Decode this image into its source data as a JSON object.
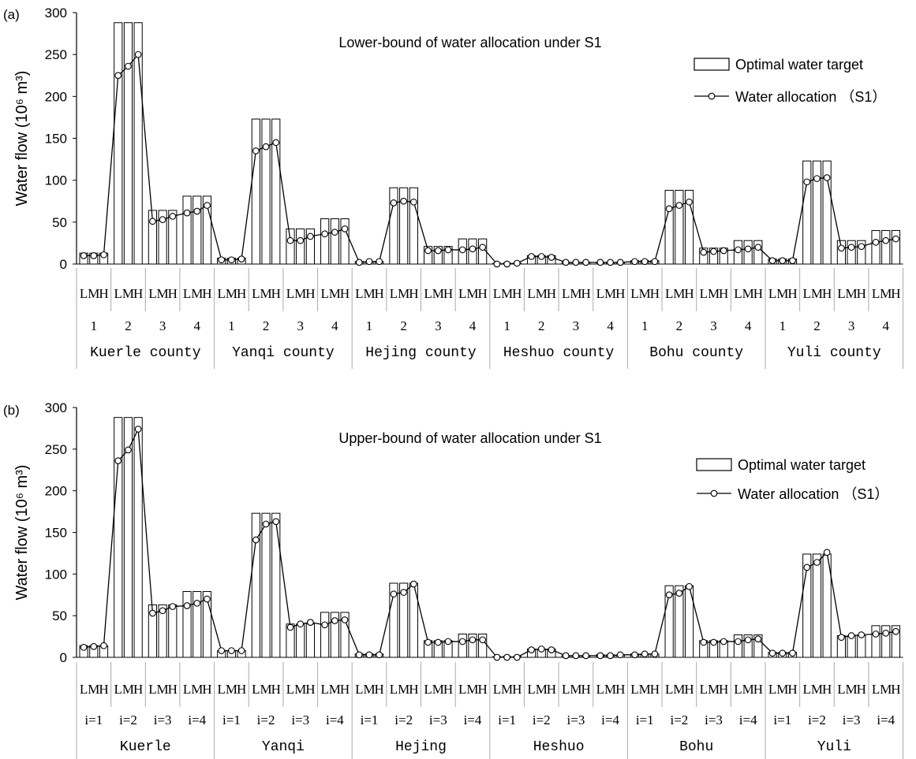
{
  "chart_data": [
    {
      "type": "bar",
      "panel_label": "(a)",
      "title": "Lower-bound of water allocation under S1",
      "ylabel": "Water flow",
      "ylabel_unit": "(10⁶ m³)",
      "ylim": [
        0,
        300
      ],
      "yticks": [
        "0",
        "50",
        "100",
        "150",
        "200",
        "250",
        "300"
      ],
      "legend": {
        "placement": "top-right",
        "bar_label": "Optimal water target",
        "line_label": "Water allocation （S1）"
      },
      "level_labels": [
        "L",
        "M",
        "H"
      ],
      "target_labels": [
        "1",
        "2",
        "3",
        "4"
      ],
      "counties": [
        "Kuerle county",
        "Yanqi county",
        "Hejing county",
        "Heshuo county",
        "Bohu county",
        "Yuli county"
      ],
      "series": [
        {
          "name": "Optimal water target",
          "values": [
            13,
            13,
            13,
            288,
            288,
            288,
            64,
            64,
            64,
            81,
            81,
            81,
            7,
            7,
            7,
            173,
            173,
            173,
            42,
            42,
            42,
            54,
            54,
            54,
            3,
            3,
            3,
            91,
            91,
            91,
            21,
            21,
            21,
            30,
            30,
            30,
            1,
            1,
            1,
            10,
            10,
            10,
            2,
            2,
            2,
            2,
            2,
            2,
            4,
            4,
            4,
            88,
            88,
            88,
            19,
            19,
            19,
            28,
            28,
            28,
            6,
            6,
            6,
            123,
            123,
            123,
            28,
            28,
            28,
            40,
            40,
            40
          ]
        },
        {
          "name": "Water allocation （S1）",
          "values": [
            10,
            10,
            11,
            225,
            236,
            250,
            51,
            53,
            57,
            61,
            63,
            70,
            5,
            5,
            6,
            135,
            140,
            145,
            28,
            28,
            33,
            36,
            38,
            42,
            2,
            3,
            3,
            73,
            75,
            74,
            16,
            16,
            17,
            17,
            18,
            20,
            0,
            0,
            1,
            9,
            9,
            8,
            2,
            2,
            2,
            2,
            2,
            2,
            3,
            3,
            3,
            66,
            70,
            74,
            14,
            15,
            16,
            17,
            18,
            20,
            4,
            4,
            4,
            98,
            102,
            103,
            19,
            20,
            21,
            26,
            28,
            30
          ]
        }
      ]
    },
    {
      "type": "bar",
      "panel_label": "(b)",
      "title": "Upper-bound of water allocation under S1",
      "ylabel": "Water flow",
      "ylabel_unit": "(10⁶ m³)",
      "ylim": [
        0,
        300
      ],
      "yticks": [
        "0",
        "50",
        "100",
        "150",
        "200",
        "250",
        "300"
      ],
      "legend": {
        "placement": "top-right",
        "bar_label": "Optimal water target",
        "line_label": "Water allocation （S1）"
      },
      "level_labels": [
        "L",
        "M",
        "H"
      ],
      "target_labels": [
        "i=1",
        "i=2",
        "i=3",
        "i=4"
      ],
      "counties": [
        "Kuerle",
        "Yanqi",
        "Hejing",
        "Heshuo",
        "Bohu",
        "Yuli"
      ],
      "series": [
        {
          "name": "Optimal water target",
          "values": [
            14,
            14,
            14,
            288,
            288,
            288,
            63,
            63,
            63,
            79,
            79,
            79,
            8,
            8,
            8,
            173,
            173,
            173,
            40,
            40,
            40,
            54,
            54,
            54,
            4,
            4,
            4,
            89,
            89,
            89,
            20,
            20,
            20,
            28,
            28,
            28,
            1,
            1,
            1,
            10,
            10,
            10,
            2,
            2,
            2,
            3,
            3,
            3,
            4,
            4,
            4,
            86,
            86,
            86,
            20,
            20,
            20,
            27,
            27,
            27,
            6,
            6,
            6,
            124,
            124,
            124,
            26,
            26,
            26,
            38,
            38,
            38
          ]
        },
        {
          "name": "Water allocation （S1）",
          "values": [
            12,
            13,
            14,
            236,
            249,
            274,
            53,
            56,
            61,
            62,
            65,
            70,
            8,
            8,
            8,
            141,
            160,
            163,
            36,
            40,
            42,
            39,
            44,
            45,
            3,
            3,
            3,
            76,
            78,
            88,
            18,
            18,
            19,
            19,
            21,
            21,
            0,
            0,
            0,
            9,
            10,
            9,
            2,
            2,
            2,
            2,
            2,
            3,
            3,
            4,
            4,
            75,
            77,
            85,
            18,
            18,
            19,
            19,
            21,
            22,
            5,
            5,
            5,
            108,
            114,
            126,
            24,
            26,
            27,
            28,
            29,
            31
          ]
        }
      ]
    }
  ]
}
